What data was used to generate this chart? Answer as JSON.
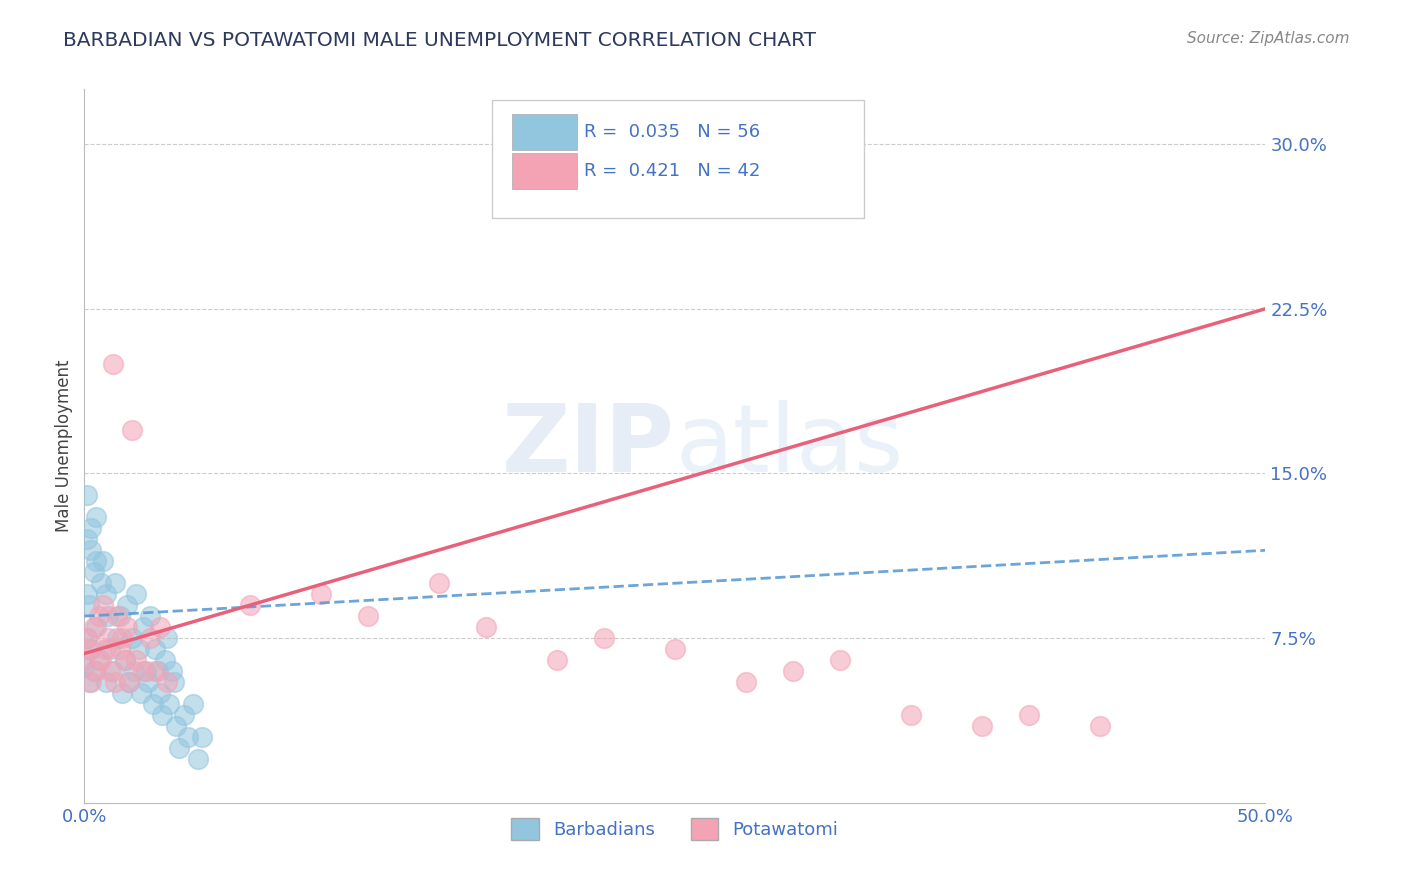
{
  "title": "BARBADIAN VS POTAWATOMI MALE UNEMPLOYMENT CORRELATION CHART",
  "source": "Source: ZipAtlas.com",
  "ylabel": "Male Unemployment",
  "xlim": [
    0.0,
    0.5
  ],
  "ylim": [
    0.0,
    0.325
  ],
  "xticks": [
    0.0,
    0.1,
    0.2,
    0.3,
    0.4,
    0.5
  ],
  "xtick_labels": [
    "0.0%",
    "",
    "",
    "",
    "",
    "50.0%"
  ],
  "ytick_labels_right": [
    "7.5%",
    "15.0%",
    "22.5%",
    "30.0%"
  ],
  "ytick_vals_right": [
    0.075,
    0.15,
    0.225,
    0.3
  ],
  "watermark_text": "ZIPatlas",
  "legend_R1": "R = 0.035",
  "legend_N1": "N = 56",
  "legend_R2": "R = 0.421",
  "legend_N2": "N = 42",
  "barbadian_color": "#92c5de",
  "potawatomi_color": "#f4a3b5",
  "barbadian_line_color": "#5b9bd5",
  "potawatomi_line_color": "#e8607a",
  "title_color": "#2d3a5e",
  "axis_label_color": "#4472c4",
  "grid_color": "#cccccc",
  "background_color": "#ffffff",
  "blue_trend_x": [
    0.0,
    0.5
  ],
  "blue_trend_y": [
    0.085,
    0.115
  ],
  "pink_trend_x": [
    0.0,
    0.5
  ],
  "pink_trend_y": [
    0.068,
    0.225
  ],
  "barbadian_x": [
    0.0,
    0.001,
    0.001,
    0.001,
    0.002,
    0.002,
    0.003,
    0.003,
    0.004,
    0.004,
    0.005,
    0.005,
    0.006,
    0.007,
    0.008,
    0.009,
    0.009,
    0.01,
    0.011,
    0.012,
    0.013,
    0.014,
    0.015,
    0.016,
    0.017,
    0.018,
    0.019,
    0.02,
    0.021,
    0.022,
    0.023,
    0.024,
    0.025,
    0.026,
    0.027,
    0.028,
    0.029,
    0.03,
    0.031,
    0.032,
    0.033,
    0.034,
    0.035,
    0.036,
    0.037,
    0.038,
    0.039,
    0.04,
    0.042,
    0.044,
    0.046,
    0.048,
    0.05,
    0.001,
    0.003,
    0.005
  ],
  "barbadian_y": [
    0.062,
    0.12,
    0.095,
    0.075,
    0.09,
    0.055,
    0.115,
    0.07,
    0.105,
    0.06,
    0.13,
    0.08,
    0.065,
    0.1,
    0.11,
    0.095,
    0.055,
    0.085,
    0.07,
    0.06,
    0.1,
    0.075,
    0.085,
    0.05,
    0.065,
    0.09,
    0.055,
    0.075,
    0.06,
    0.095,
    0.07,
    0.05,
    0.08,
    0.06,
    0.055,
    0.085,
    0.045,
    0.07,
    0.06,
    0.05,
    0.04,
    0.065,
    0.075,
    0.045,
    0.06,
    0.055,
    0.035,
    0.025,
    0.04,
    0.03,
    0.045,
    0.02,
    0.03,
    0.14,
    0.125,
    0.11
  ],
  "potawatomi_x": [
    0.0,
    0.001,
    0.002,
    0.003,
    0.004,
    0.005,
    0.006,
    0.007,
    0.008,
    0.009,
    0.01,
    0.011,
    0.012,
    0.013,
    0.014,
    0.015,
    0.016,
    0.017,
    0.018,
    0.019,
    0.02,
    0.022,
    0.025,
    0.028,
    0.03,
    0.032,
    0.035,
    0.07,
    0.1,
    0.12,
    0.15,
    0.17,
    0.2,
    0.22,
    0.25,
    0.28,
    0.3,
    0.32,
    0.35,
    0.38,
    0.4,
    0.43
  ],
  "potawatomi_y": [
    0.065,
    0.075,
    0.07,
    0.055,
    0.08,
    0.06,
    0.085,
    0.065,
    0.09,
    0.07,
    0.075,
    0.06,
    0.2,
    0.055,
    0.085,
    0.07,
    0.075,
    0.065,
    0.08,
    0.055,
    0.17,
    0.065,
    0.06,
    0.075,
    0.06,
    0.08,
    0.055,
    0.09,
    0.095,
    0.085,
    0.1,
    0.08,
    0.065,
    0.075,
    0.07,
    0.055,
    0.06,
    0.065,
    0.04,
    0.035,
    0.04,
    0.035
  ]
}
